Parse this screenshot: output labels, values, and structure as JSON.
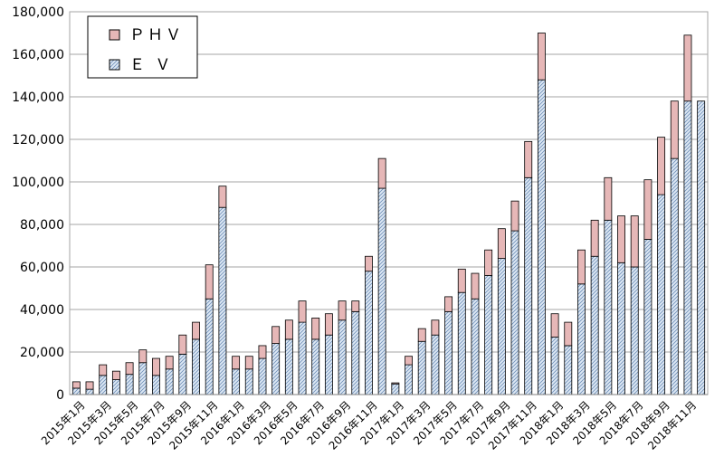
{
  "chart_data": {
    "type": "bar",
    "stacked": true,
    "categories": [
      "2015年1月",
      "2015年2月",
      "2015年3月",
      "2015年4月",
      "2015年5月",
      "2015年6月",
      "2015年7月",
      "2015年8月",
      "2015年9月",
      "2015年10月",
      "2015年11月",
      "2015年12月",
      "2016年1月",
      "2016年2月",
      "2016年3月",
      "2016年4月",
      "2016年5月",
      "2016年6月",
      "2016年7月",
      "2016年8月",
      "2016年9月",
      "2016年10月",
      "2016年11月",
      "2016年12月",
      "2017年1月",
      "2017年2月",
      "2017年3月",
      "2017年4月",
      "2017年5月",
      "2017年6月",
      "2017年7月",
      "2017年8月",
      "2017年9月",
      "2017年10月",
      "2017年11月",
      "2017年12月",
      "2018年1月",
      "2018年2月",
      "2018年3月",
      "2018年4月",
      "2018年5月",
      "2018年6月",
      "2018年7月",
      "2018年8月",
      "2018年9月",
      "2018年10月",
      "2018年11月",
      "2018年12月"
    ],
    "x_tick_labels": [
      "2015年1月",
      "2015年3月",
      "2015年5月",
      "2015年7月",
      "2015年9月",
      "2015年11月",
      "2016年1月",
      "2016年3月",
      "2016年5月",
      "2016年7月",
      "2016年9月",
      "2016年11月",
      "2017年1月",
      "2017年3月",
      "2017年5月",
      "2017年7月",
      "2017年9月",
      "2017年11月",
      "2018年1月",
      "2018年3月",
      "2018年5月",
      "2018年7月",
      "2018年9月",
      "2018年11月"
    ],
    "series": [
      {
        "name": "Ｅ Ｖ",
        "color": "#dde8f4",
        "hatch": "#6f8fb8",
        "values": [
          3000,
          2500,
          9000,
          7000,
          9500,
          15000,
          9000,
          12000,
          19000,
          26000,
          45000,
          88000,
          12000,
          12000,
          17000,
          24000,
          26000,
          34000,
          26000,
          28000,
          35000,
          39000,
          58000,
          97000,
          5000,
          14000,
          25000,
          28000,
          39000,
          48000,
          45000,
          56000,
          64000,
          77000,
          102000,
          148000,
          27000,
          23000,
          52000,
          65000,
          82000,
          62000,
          60000,
          73000,
          94000,
          111000,
          138000,
          138000
        ]
      },
      {
        "name": "ＰＨＶ",
        "color": "#e6b7b7",
        "values": [
          3000,
          3500,
          5000,
          4000,
          5500,
          6000,
          8000,
          6000,
          9000,
          8000,
          16000,
          10000,
          6000,
          6000,
          6000,
          8000,
          9000,
          10000,
          10000,
          10000,
          9000,
          5000,
          7000,
          14000,
          500,
          4000,
          6000,
          7000,
          7000,
          11000,
          12000,
          12000,
          14000,
          14000,
          17000,
          22000,
          11000,
          11000,
          16000,
          17000,
          20000,
          22000,
          24000,
          28000,
          27000,
          27000,
          31000,
          0
        ]
      }
    ],
    "y_tick_labels": [
      "0",
      "20,000",
      "40,000",
      "60,000",
      "80,000",
      "100,000",
      "120,000",
      "140,000",
      "160,000",
      "180,000"
    ],
    "ylim": [
      0,
      180000
    ],
    "grid": true,
    "legend_position": "top-left"
  }
}
